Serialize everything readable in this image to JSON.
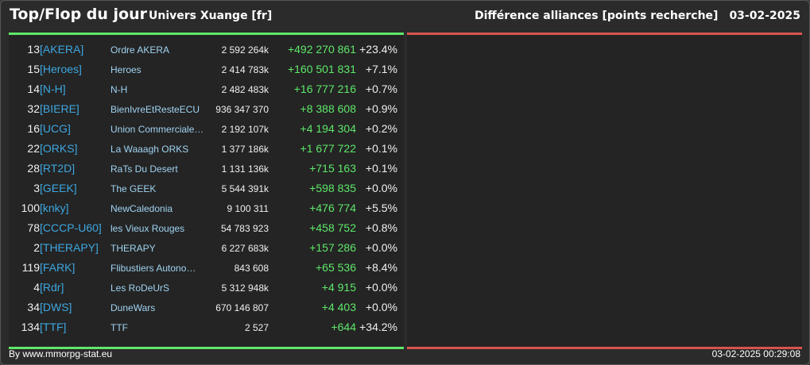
{
  "header": {
    "title": "Top/Flop du jour",
    "universe": "Univers Xuange [fr]",
    "ranking": "Différence alliances [points recherche]",
    "date": "03-02-2025"
  },
  "colors": {
    "positive": "#5ee86a",
    "negative": "#d9534f",
    "tag": "#3da7e0",
    "name": "#9fd3f2"
  },
  "rows": [
    {
      "rank": "13",
      "tag": "[AKERA]",
      "name": "Ordre AKERA",
      "points": "2 592 264k",
      "diff": "+492 270 861",
      "pct": "+23.4%"
    },
    {
      "rank": "15",
      "tag": "[Heroes]",
      "name": "Heroes",
      "points": "2 414 783k",
      "diff": "+160 501 831",
      "pct": "+7.1%"
    },
    {
      "rank": "14",
      "tag": "[N-H]",
      "name": "N-H",
      "points": "2 482 483k",
      "diff": "+16 777 216",
      "pct": "+0.7%"
    },
    {
      "rank": "32",
      "tag": "[BIERE]",
      "name": "BienIvreEtResteECU",
      "points": "936 347 370",
      "diff": "+8 388 608",
      "pct": "+0.9%"
    },
    {
      "rank": "16",
      "tag": "[UCG]",
      "name": "Union Commerciale…",
      "points": "2 192 107k",
      "diff": "+4 194 304",
      "pct": "+0.2%"
    },
    {
      "rank": "22",
      "tag": "[ORKS]",
      "name": "La Waaagh ORKS",
      "points": "1 377 186k",
      "diff": "+1 677 722",
      "pct": "+0.1%"
    },
    {
      "rank": "28",
      "tag": "[RT2D]",
      "name": "RaTs Du Desert",
      "points": "1 131 136k",
      "diff": "+715 163",
      "pct": "+0.1%"
    },
    {
      "rank": "3",
      "tag": "[GEEK]",
      "name": "The GEEK",
      "points": "5 544 391k",
      "diff": "+598 835",
      "pct": "+0.0%"
    },
    {
      "rank": "100",
      "tag": "[knky]",
      "name": "NewCaledonia",
      "points": "9 100 311",
      "diff": "+476 774",
      "pct": "+5.5%"
    },
    {
      "rank": "78",
      "tag": "[CCCP-U60]",
      "name": "les Vieux Rouges",
      "points": "54 783 923",
      "diff": "+458 752",
      "pct": "+0.8%"
    },
    {
      "rank": "2",
      "tag": "[THERAPY]",
      "name": "THERAPY",
      "points": "6 227 683k",
      "diff": "+157 286",
      "pct": "+0.0%"
    },
    {
      "rank": "119",
      "tag": "[FARK]",
      "name": "Flibustiers Autono…",
      "points": "843 608",
      "diff": "+65 536",
      "pct": "+8.4%"
    },
    {
      "rank": "4",
      "tag": "[Rdr]",
      "name": "Les RoDeUrS",
      "points": "5 312 948k",
      "diff": "+4 915",
      "pct": "+0.0%"
    },
    {
      "rank": "34",
      "tag": "[DWS]",
      "name": "DuneWars",
      "points": "670 146 807",
      "diff": "+4 403",
      "pct": "+0.0%"
    },
    {
      "rank": "134",
      "tag": "[TTF]",
      "name": "TTF",
      "points": "2 527",
      "diff": "+644",
      "pct": "+34.2%"
    }
  ],
  "footer": {
    "source": "By www.mmorpg-stat.eu",
    "timestamp": "03-02-2025 00:29:08"
  }
}
